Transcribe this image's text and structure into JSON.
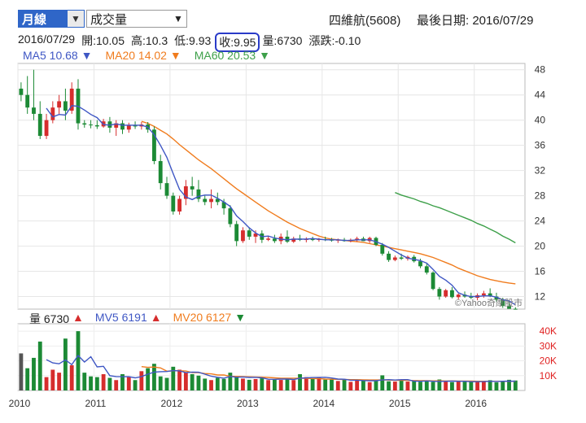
{
  "toolbar": {
    "period": "月線",
    "indicator": "成交量",
    "stock_name": "四維航(5608)",
    "last_date_label": "最後日期: 2016/07/29"
  },
  "quote": {
    "date": "2016/07/29",
    "open": "開:10.05",
    "high": "高:10.3",
    "low": "低:9.93",
    "close": "收:9.95",
    "volume": "量:6730",
    "change": "漲跌:-0.10"
  },
  "ma_legend": {
    "ma5": "MA5 10.68 ▼",
    "ma20": "MA20 14.02 ▼",
    "ma60": "MA60 20.53 ▼"
  },
  "vol_legend": {
    "vol": "量 6730",
    "vol_arrow": "▲",
    "mv5": "MV5 6191",
    "mv5_arrow": "▲",
    "mv20": "MV20 6127",
    "mv20_arrow": "▼"
  },
  "watermark": "©Yahoo奇摩股市",
  "colors": {
    "up": "#d62d2d",
    "down": "#1c8a35",
    "ma5": "#3f57c4",
    "ma20": "#f07c1e",
    "ma60": "#3ea04a",
    "legend_blue": "#3f57c4",
    "legend_orange": "#f07c1e",
    "legend_green": "#3ea04a",
    "highlight": "#2a3bc8"
  },
  "chart_data": [
    {
      "type": "candlestick",
      "title": "",
      "y_ticks": [
        12,
        16,
        20,
        24,
        28,
        32,
        36,
        40,
        44,
        48
      ],
      "ylim": [
        10,
        49
      ],
      "x_ticks": [
        "2010",
        "2011",
        "2012",
        "2013",
        "2014",
        "2015",
        "2016"
      ],
      "xlim": [
        "2010-01",
        "2016-08"
      ],
      "months": [
        "2010-01",
        "2010-02",
        "2010-03",
        "2010-04",
        "2010-05",
        "2010-06",
        "2010-07",
        "2010-08",
        "2010-09",
        "2010-10",
        "2010-11",
        "2010-12",
        "2011-01",
        "2011-02",
        "2011-03",
        "2011-04",
        "2011-05",
        "2011-06",
        "2011-07",
        "2011-08",
        "2011-09",
        "2011-10",
        "2011-11",
        "2011-12",
        "2012-01",
        "2012-02",
        "2012-03",
        "2012-04",
        "2012-05",
        "2012-06",
        "2012-07",
        "2012-08",
        "2012-09",
        "2012-10",
        "2012-11",
        "2012-12",
        "2013-01",
        "2013-02",
        "2013-03",
        "2013-04",
        "2013-05",
        "2013-06",
        "2013-07",
        "2013-08",
        "2013-09",
        "2013-10",
        "2013-11",
        "2013-12",
        "2014-01",
        "2014-02",
        "2014-03",
        "2014-04",
        "2014-05",
        "2014-06",
        "2014-07",
        "2014-08",
        "2014-09",
        "2014-10",
        "2014-11",
        "2014-12",
        "2015-01",
        "2015-02",
        "2015-03",
        "2015-04",
        "2015-05",
        "2015-06",
        "2015-07",
        "2015-08",
        "2015-09",
        "2015-10",
        "2015-11",
        "2015-12",
        "2016-01",
        "2016-02",
        "2016-03",
        "2016-04",
        "2016-05",
        "2016-06",
        "2016-07"
      ],
      "ohlc": [
        [
          45,
          46,
          43,
          44
        ],
        [
          44,
          47,
          41,
          42
        ],
        [
          42,
          48,
          40,
          41
        ],
        [
          41,
          43,
          37,
          37.5
        ],
        [
          37.5,
          41,
          37,
          40
        ],
        [
          40,
          43,
          39.5,
          42
        ],
        [
          42,
          44,
          41,
          43
        ],
        [
          43,
          45,
          40,
          41.5
        ],
        [
          41.5,
          46,
          41,
          45
        ],
        [
          45,
          46.5,
          38.5,
          39.5
        ],
        [
          39.5,
          40,
          38.8,
          39.3
        ],
        [
          39.3,
          40,
          38.7,
          39.2
        ],
        [
          39.2,
          40,
          38.6,
          39
        ],
        [
          39,
          40.2,
          38.8,
          39.8
        ],
        [
          39.8,
          40.5,
          38,
          38.8
        ],
        [
          38.8,
          40,
          37.5,
          39.5
        ],
        [
          39.5,
          40,
          37.8,
          38.5
        ],
        [
          38.5,
          39.6,
          38,
          39.2
        ],
        [
          39.2,
          39.8,
          38.6,
          39
        ],
        [
          39,
          39.7,
          38.5,
          39.3
        ],
        [
          39.3,
          39.7,
          38,
          38.5
        ],
        [
          38.5,
          39,
          33,
          33.5
        ],
        [
          33.5,
          34.5,
          29,
          30
        ],
        [
          30,
          31,
          27.5,
          28
        ],
        [
          28,
          28.5,
          25,
          25.5
        ],
        [
          25.5,
          28,
          25,
          27.5
        ],
        [
          27.5,
          30.5,
          26.5,
          29.5
        ],
        [
          29.5,
          31,
          28,
          29
        ],
        [
          29,
          30.5,
          27,
          27.5
        ],
        [
          27.5,
          28,
          26.5,
          27
        ],
        [
          27,
          29,
          26,
          27.5
        ],
        [
          27.5,
          28.5,
          26.5,
          27
        ],
        [
          27,
          27.5,
          25,
          26
        ],
        [
          26,
          26.5,
          23,
          23.5
        ],
        [
          23.5,
          24,
          20,
          20.8
        ],
        [
          20.8,
          23,
          20.5,
          22.5
        ],
        [
          22.5,
          23,
          21,
          21.5
        ],
        [
          21.5,
          22.5,
          20.5,
          22
        ],
        [
          22,
          22.5,
          20.5,
          21
        ],
        [
          21,
          21.5,
          20.8,
          21.2
        ],
        [
          21.2,
          21.8,
          20.5,
          20.8
        ],
        [
          20.8,
          22,
          20.3,
          21.5
        ],
        [
          21.5,
          22.5,
          20.5,
          20.7
        ],
        [
          20.7,
          21.5,
          20.5,
          21.2
        ],
        [
          21.2,
          21.8,
          20.8,
          21
        ],
        [
          21,
          21.4,
          20.6,
          21.1
        ],
        [
          21.1,
          21.5,
          20.8,
          21
        ],
        [
          21,
          21.3,
          20.7,
          21.1
        ],
        [
          21.1,
          21.5,
          20.8,
          21
        ],
        [
          21,
          21.3,
          20.7,
          20.9
        ],
        [
          20.9,
          21.2,
          20.5,
          21
        ],
        [
          21,
          21.3,
          20.7,
          20.8
        ],
        [
          20.8,
          21.2,
          20.6,
          21
        ],
        [
          21,
          21.5,
          20.7,
          21.2
        ],
        [
          21.2,
          21.5,
          20.8,
          20.8
        ],
        [
          20.8,
          21.5,
          20.5,
          21.3
        ],
        [
          21.3,
          21.5,
          20,
          20.2
        ],
        [
          20.2,
          20.5,
          18.5,
          18.8
        ],
        [
          18.8,
          19.2,
          17.5,
          17.8
        ],
        [
          17.8,
          18.5,
          17.6,
          18.2
        ],
        [
          18.2,
          18.8,
          17.8,
          18
        ],
        [
          18,
          18.5,
          17.7,
          18.3
        ],
        [
          18.3,
          18.6,
          17.4,
          17.6
        ],
        [
          17.6,
          18,
          16.5,
          16.8
        ],
        [
          16.8,
          17.2,
          15.5,
          15.8
        ],
        [
          15.8,
          16,
          13,
          13.2
        ],
        [
          13.2,
          13.5,
          11.5,
          12
        ],
        [
          12,
          13.2,
          11.8,
          13
        ],
        [
          13,
          13.5,
          11.7,
          11.9
        ],
        [
          11.9,
          12.5,
          11.5,
          12.3
        ],
        [
          12.3,
          12.8,
          11.8,
          12
        ],
        [
          12,
          12.6,
          11.6,
          11.8
        ],
        [
          11.8,
          12.5,
          11.4,
          12.2
        ],
        [
          12.2,
          12.9,
          11.8,
          12.5
        ],
        [
          12.5,
          13.3,
          11.9,
          12
        ],
        [
          12,
          12.6,
          11.2,
          11.5
        ],
        [
          11.5,
          11.8,
          10.2,
          10.5
        ],
        [
          10.5,
          11.2,
          10.2,
          10.05
        ],
        [
          10.05,
          10.3,
          9.93,
          9.95
        ]
      ],
      "volume": [
        25000,
        15000,
        22000,
        33000,
        9000,
        14000,
        12000,
        35000,
        17000,
        40000,
        12000,
        9500,
        9000,
        11000,
        8500,
        7000,
        11000,
        9000,
        7000,
        13000,
        15000,
        18000,
        9500,
        8500,
        16000,
        14000,
        12000,
        11000,
        10000,
        8000,
        7000,
        8500,
        7800,
        12000,
        9000,
        8000,
        7200,
        7700,
        8200,
        7000,
        7300,
        7100,
        8300,
        7000,
        11000,
        9000,
        8200,
        8900,
        7300,
        7800,
        6400,
        7500,
        5800,
        7200,
        6700,
        5600,
        7000,
        10200,
        6200,
        6000,
        6700,
        6000,
        6400,
        5900,
        6800,
        5800,
        7400,
        6000,
        5600,
        6100,
        5900,
        6100,
        5700,
        6300,
        6900,
        5500,
        6400,
        7200,
        6730
      ],
      "ma5": [
        null,
        null,
        null,
        null,
        41.9,
        40.5,
        40.9,
        40.8,
        42.3,
        42.2,
        41.6,
        40.9,
        40.4,
        39.3,
        39.2,
        39.4,
        39.2,
        39.2,
        39.2,
        39.2,
        38.9,
        37.7,
        36,
        34.1,
        31.5,
        29,
        27.8,
        27.4,
        27.9,
        28.1,
        28.1,
        27.6,
        27,
        26.3,
        24.8,
        23.9,
        22.9,
        22.1,
        21.5,
        21.6,
        21.3,
        21.1,
        21,
        21.1,
        21.1,
        21.1,
        21.2,
        21.1,
        21,
        21,
        21,
        20.9,
        20.9,
        21,
        21,
        21,
        20.7,
        20.3,
        19.8,
        19.2,
        18.6,
        18.1,
        17.9,
        17.7,
        17.3,
        16.3,
        15.2,
        14.6,
        13.8,
        12.6,
        12.2,
        12,
        12,
        12.1,
        12.1,
        11.9,
        11.5,
        11.3,
        10.68
      ],
      "ma20": [
        null,
        null,
        null,
        null,
        null,
        null,
        null,
        null,
        null,
        null,
        null,
        null,
        null,
        null,
        null,
        null,
        null,
        null,
        null,
        39.8,
        39.5,
        39,
        38.4,
        37.8,
        37,
        36.1,
        35.3,
        34.5,
        33.7,
        33,
        32.3,
        31.5,
        30.7,
        29.9,
        29.1,
        28.4,
        27.7,
        27,
        26.3,
        25.6,
        25,
        24.4,
        23.8,
        23.3,
        22.8,
        22.4,
        22,
        21.6,
        21.3,
        21.1,
        21,
        20.9,
        20.8,
        20.7,
        20.6,
        20.4,
        20.2,
        20,
        19.8,
        19.6,
        19.4,
        19.2,
        19,
        18.8,
        18.5,
        18.2,
        17.8,
        17.4,
        17,
        16.5,
        16.1,
        15.7,
        15.3,
        15,
        14.7,
        14.5,
        14.3,
        14.15,
        14.02
      ],
      "ma60": [
        null,
        null,
        null,
        null,
        null,
        null,
        null,
        null,
        null,
        null,
        null,
        null,
        null,
        null,
        null,
        null,
        null,
        null,
        null,
        null,
        null,
        null,
        null,
        null,
        null,
        null,
        null,
        null,
        null,
        null,
        null,
        null,
        null,
        null,
        null,
        null,
        null,
        null,
        null,
        null,
        null,
        null,
        null,
        null,
        null,
        null,
        null,
        null,
        null,
        null,
        null,
        null,
        null,
        null,
        null,
        null,
        null,
        null,
        null,
        28.5,
        28.1,
        27.8,
        27.5,
        27.1,
        26.8,
        26.4,
        26.1,
        25.7,
        25.3,
        24.9,
        24.5,
        24.1,
        23.6,
        23.2,
        22.7,
        22.2,
        21.6,
        21.1,
        20.53
      ],
      "mv5": [
        null,
        null,
        null,
        null,
        20800,
        18600,
        18000,
        20600,
        17400,
        23600,
        19200,
        22800,
        15900,
        16300,
        10000,
        9400,
        9300,
        9300,
        8500,
        9400,
        11000,
        12400,
        12700,
        12800,
        13400,
        13200,
        12000,
        12400,
        12300,
        11000,
        9600,
        8900,
        8300,
        9500,
        8900,
        9100,
        8800,
        8900,
        8500,
        7600,
        7500,
        7700,
        7700,
        7400,
        8300,
        8500,
        8700,
        8800,
        8900,
        8400,
        7700,
        7600,
        6900,
        6900,
        6700,
        6600,
        6600,
        7100,
        7300,
        7000,
        7300,
        7300,
        6300,
        6200,
        6400,
        6200,
        6100,
        6200,
        6300,
        6200,
        6200,
        5900,
        5900,
        6000,
        6200,
        6100,
        6200,
        6300,
        6191
      ],
      "mv20": [
        null,
        null,
        null,
        null,
        null,
        null,
        null,
        null,
        null,
        null,
        null,
        null,
        null,
        null,
        null,
        null,
        null,
        null,
        null,
        16100,
        15600,
        15800,
        15200,
        13000,
        13300,
        13300,
        13100,
        12000,
        12000,
        11400,
        11200,
        10400,
        10500,
        9500,
        9500,
        9400,
        9200,
        9100,
        9000,
        8800,
        8500,
        8300,
        8300,
        8300,
        8300,
        8100,
        8000,
        8000,
        7700,
        7600,
        7500,
        7400,
        7300,
        7300,
        7200,
        7100,
        7100,
        7100,
        7000,
        6900,
        6800,
        6800,
        6700,
        6600,
        6600,
        6500,
        6500,
        6400,
        6400,
        6300,
        6300,
        6300,
        6200,
        6200,
        6200,
        6200,
        6150,
        6130,
        6127
      ]
    }
  ]
}
